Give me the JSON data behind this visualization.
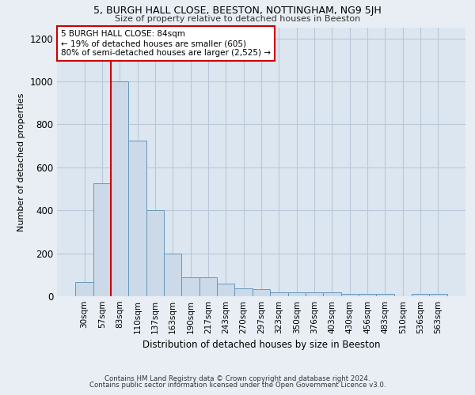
{
  "title1": "5, BURGH HALL CLOSE, BEESTON, NOTTINGHAM, NG9 5JH",
  "title2": "Size of property relative to detached houses in Beeston",
  "xlabel": "Distribution of detached houses by size in Beeston",
  "ylabel": "Number of detached properties",
  "categories": [
    "30sqm",
    "57sqm",
    "83sqm",
    "110sqm",
    "137sqm",
    "163sqm",
    "190sqm",
    "217sqm",
    "243sqm",
    "270sqm",
    "297sqm",
    "323sqm",
    "350sqm",
    "376sqm",
    "403sqm",
    "430sqm",
    "456sqm",
    "483sqm",
    "510sqm",
    "536sqm",
    "563sqm"
  ],
  "values": [
    65,
    525,
    1000,
    725,
    400,
    198,
    90,
    90,
    60,
    38,
    32,
    18,
    18,
    18,
    18,
    12,
    12,
    12,
    0,
    12,
    12
  ],
  "bar_color": "#ccd9e8",
  "bar_edge_color": "#6699bb",
  "vline_color": "#cc0000",
  "vline_x_index": 2,
  "annotation_text": "5 BURGH HALL CLOSE: 84sqm\n← 19% of detached houses are smaller (605)\n80% of semi-detached houses are larger (2,525) →",
  "annotation_box_color": "#ffffff",
  "annotation_box_edge": "#cc0000",
  "ylim": [
    0,
    1250
  ],
  "yticks": [
    0,
    200,
    400,
    600,
    800,
    1000,
    1200
  ],
  "footnote1": "Contains HM Land Registry data © Crown copyright and database right 2024.",
  "footnote2": "Contains public sector information licensed under the Open Government Licence v3.0.",
  "bg_color": "#e8eef4",
  "plot_bg_color": "#dce6f0",
  "grid_color": "#b8c8d8"
}
